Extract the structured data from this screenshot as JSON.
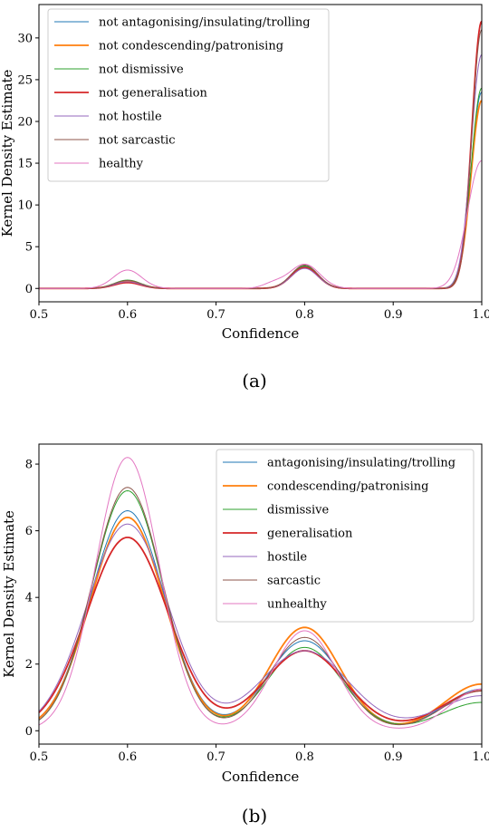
{
  "chart_data": [
    {
      "type": "line",
      "caption": "(a)",
      "xlabel": "Confidence",
      "ylabel": "Kernel Density Estimate",
      "xlim": [
        0.5,
        1.0
      ],
      "ylim": [
        -1.6,
        34
      ],
      "xticks": [
        "0.5",
        "0.6",
        "0.7",
        "0.8",
        "0.9",
        "1.0"
      ],
      "xtick_values": [
        0.5,
        0.6,
        0.7,
        0.8,
        0.9,
        1.0
      ],
      "yticks": [
        "0",
        "5",
        "10",
        "15",
        "20",
        "25",
        "30"
      ],
      "ytick_values": [
        0,
        5,
        10,
        15,
        20,
        25,
        30
      ],
      "legend_position": "top-left",
      "series": [
        {
          "name": "not antagonising/insulating/trolling",
          "color": "#1f77b4",
          "width": 1.0,
          "peaks": [
            [
              0.6,
              0.9,
              0.015
            ],
            [
              0.8,
              2.6,
              0.015
            ],
            [
              1.0,
              23.5,
              0.012
            ]
          ]
        },
        {
          "name": "not condescending/patronising",
          "color": "#ff7f0e",
          "width": 1.8,
          "peaks": [
            [
              0.6,
              0.85,
              0.015
            ],
            [
              0.8,
              2.5,
              0.015
            ],
            [
              1.0,
              22.5,
              0.012
            ]
          ]
        },
        {
          "name": "not dismissive",
          "color": "#2ca02c",
          "width": 1.0,
          "peaks": [
            [
              0.6,
              1.0,
              0.015
            ],
            [
              0.8,
              2.7,
              0.015
            ],
            [
              1.0,
              24.0,
              0.012
            ]
          ]
        },
        {
          "name": "not generalisation",
          "color": "#d62728",
          "width": 1.8,
          "peaks": [
            [
              0.6,
              0.7,
              0.015
            ],
            [
              0.8,
              2.5,
              0.015
            ],
            [
              1.0,
              32.0,
              0.011
            ]
          ]
        },
        {
          "name": "not hostile",
          "color": "#9467bd",
          "width": 1.0,
          "peaks": [
            [
              0.6,
              0.8,
              0.015
            ],
            [
              0.8,
              2.4,
              0.015
            ],
            [
              1.0,
              28.0,
              0.012
            ]
          ]
        },
        {
          "name": "not sarcastic",
          "color": "#8c564b",
          "width": 1.0,
          "peaks": [
            [
              0.6,
              0.95,
              0.015
            ],
            [
              0.8,
              2.8,
              0.015
            ],
            [
              1.0,
              31.0,
              0.011
            ]
          ]
        },
        {
          "name": "healthy",
          "color": "#e377c2",
          "width": 1.0,
          "peaks": [
            [
              0.6,
              2.2,
              0.016
            ],
            [
              0.765,
              0.6,
              0.012
            ],
            [
              0.8,
              2.9,
              0.017
            ],
            [
              1.0,
              15.3,
              0.016
            ]
          ]
        }
      ]
    },
    {
      "type": "line",
      "caption": "(b)",
      "xlabel": "Confidence",
      "ylabel": "Kernel Density Estimate",
      "xlim": [
        0.5,
        1.0
      ],
      "ylim": [
        -0.4,
        8.6
      ],
      "xticks": [
        "0.5",
        "0.6",
        "0.7",
        "0.8",
        "0.9",
        "1.0"
      ],
      "xtick_values": [
        0.5,
        0.6,
        0.7,
        0.8,
        0.9,
        1.0
      ],
      "yticks": [
        "0",
        "2",
        "4",
        "6",
        "8"
      ],
      "ytick_values": [
        0,
        2,
        4,
        6,
        8
      ],
      "legend_position": "top-right",
      "series": [
        {
          "name": "antagonising/insulating/trolling",
          "color": "#1f77b4",
          "width": 1.0,
          "peaks": [
            [
              0.6,
              6.6,
              0.042
            ],
            [
              0.8,
              2.7,
              0.042
            ],
            [
              1.0,
              1.25,
              0.042
            ]
          ]
        },
        {
          "name": "condescending/patronising",
          "color": "#ff7f0e",
          "width": 1.8,
          "peaks": [
            [
              0.6,
              6.4,
              0.042
            ],
            [
              0.8,
              3.1,
              0.04
            ],
            [
              1.0,
              1.4,
              0.042
            ]
          ]
        },
        {
          "name": "dismissive",
          "color": "#2ca02c",
          "width": 1.0,
          "peaks": [
            [
              0.6,
              7.2,
              0.04
            ],
            [
              0.8,
              2.5,
              0.042
            ],
            [
              1.0,
              0.85,
              0.045
            ]
          ]
        },
        {
          "name": "generalisation",
          "color": "#d62728",
          "width": 1.8,
          "peaks": [
            [
              0.6,
              5.8,
              0.046
            ],
            [
              0.8,
              2.4,
              0.046
            ],
            [
              1.0,
              1.2,
              0.045
            ]
          ]
        },
        {
          "name": "hostile",
          "color": "#9467bd",
          "width": 1.0,
          "peaks": [
            [
              0.6,
              6.2,
              0.046
            ],
            [
              0.8,
              2.4,
              0.05
            ],
            [
              1.0,
              1.05,
              0.048
            ]
          ]
        },
        {
          "name": "sarcastic",
          "color": "#8c564b",
          "width": 1.0,
          "peaks": [
            [
              0.6,
              7.3,
              0.04
            ],
            [
              0.8,
              2.8,
              0.04
            ],
            [
              1.0,
              1.2,
              0.042
            ]
          ]
        },
        {
          "name": "unhealthy",
          "color": "#e377c2",
          "width": 1.0,
          "peaks": [
            [
              0.6,
              8.2,
              0.036
            ],
            [
              0.8,
              3.0,
              0.036
            ],
            [
              1.0,
              1.25,
              0.036
            ]
          ]
        }
      ]
    }
  ]
}
